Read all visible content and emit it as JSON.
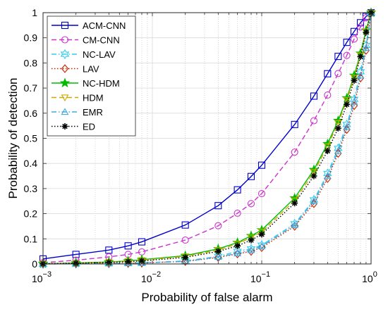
{
  "chart_data": {
    "type": "line",
    "title": "",
    "xlabel": "Probability of false alarm",
    "ylabel": "Probability of detection",
    "xscale": "log",
    "xlim": [
      0.001,
      1
    ],
    "ylim": [
      0,
      1
    ],
    "grid": true,
    "legend_position": "top-left",
    "x_tick_labels": [
      {
        "base": "10",
        "exp": "−3"
      },
      {
        "base": "10",
        "exp": "−2"
      },
      {
        "base": "10",
        "exp": "−1"
      },
      {
        "base": "10",
        "exp": "0"
      }
    ],
    "y_tick_labels": [
      "0",
      "0.1",
      "0.2",
      "0.3",
      "0.4",
      "0.5",
      "0.6",
      "0.7",
      "0.8",
      "0.9",
      "1"
    ],
    "x": [
      0.001,
      0.002,
      0.004,
      0.006,
      0.008,
      0.02,
      0.04,
      0.06,
      0.08,
      0.1,
      0.2,
      0.3,
      0.4,
      0.5,
      0.6,
      0.7,
      0.8,
      0.9,
      1.0
    ],
    "series": [
      {
        "name": "ACM-CNN",
        "color": "#0000CC",
        "dash": "solid",
        "marker": "square",
        "values": [
          0.02,
          0.038,
          0.055,
          0.072,
          0.088,
          0.155,
          0.232,
          0.295,
          0.348,
          0.393,
          0.555,
          0.668,
          0.757,
          0.826,
          0.882,
          0.925,
          0.96,
          0.985,
          1.0
        ]
      },
      {
        "name": "CM-CNN",
        "color": "#CC33CC",
        "dash": "dashed",
        "marker": "circle",
        "values": [
          0.005,
          0.015,
          0.028,
          0.038,
          0.048,
          0.095,
          0.152,
          0.202,
          0.24,
          0.28,
          0.445,
          0.57,
          0.672,
          0.758,
          0.83,
          0.895,
          0.943,
          0.98,
          1.0
        ]
      },
      {
        "name": "NC-LAV",
        "color": "#33CCEE",
        "dash": "dashdot",
        "marker": "hexagram",
        "values": [
          0.0,
          0.001,
          0.002,
          0.003,
          0.004,
          0.012,
          0.03,
          0.05,
          0.06,
          0.075,
          0.16,
          0.255,
          0.36,
          0.46,
          0.555,
          0.655,
          0.765,
          0.87,
          1.0
        ]
      },
      {
        "name": "LAV",
        "color": "#CC2200",
        "dash": "dotted",
        "marker": "diamond",
        "values": [
          0.0,
          0.001,
          0.002,
          0.003,
          0.004,
          0.01,
          0.026,
          0.04,
          0.05,
          0.065,
          0.15,
          0.24,
          0.34,
          0.44,
          0.535,
          0.63,
          0.74,
          0.85,
          1.0
        ]
      },
      {
        "name": "NC-HDM",
        "color": "#00BB00",
        "dash": "solid",
        "marker": "pentagram",
        "values": [
          0.001,
          0.004,
          0.008,
          0.012,
          0.017,
          0.033,
          0.06,
          0.085,
          0.112,
          0.135,
          0.262,
          0.375,
          0.478,
          0.57,
          0.66,
          0.75,
          0.838,
          0.93,
          1.0
        ]
      },
      {
        "name": "HDM",
        "color": "#CCAA00",
        "dash": "dashed",
        "marker": "triangle-down",
        "values": [
          0.001,
          0.003,
          0.007,
          0.011,
          0.015,
          0.03,
          0.055,
          0.08,
          0.105,
          0.128,
          0.252,
          0.365,
          0.468,
          0.56,
          0.652,
          0.742,
          0.83,
          0.925,
          1.0
        ]
      },
      {
        "name": "EMR",
        "color": "#44AADD",
        "dash": "dashdot",
        "marker": "triangle-up",
        "values": [
          0.0,
          0.001,
          0.002,
          0.003,
          0.004,
          0.01,
          0.028,
          0.042,
          0.055,
          0.07,
          0.155,
          0.25,
          0.35,
          0.45,
          0.545,
          0.645,
          0.75,
          0.86,
          1.0
        ]
      },
      {
        "name": "ED",
        "color": "#000000",
        "dash": "dotted",
        "marker": "asterisk",
        "values": [
          0.001,
          0.003,
          0.006,
          0.009,
          0.012,
          0.026,
          0.05,
          0.072,
          0.095,
          0.118,
          0.242,
          0.35,
          0.45,
          0.54,
          0.635,
          0.73,
          0.825,
          0.922,
          1.0
        ]
      }
    ]
  }
}
